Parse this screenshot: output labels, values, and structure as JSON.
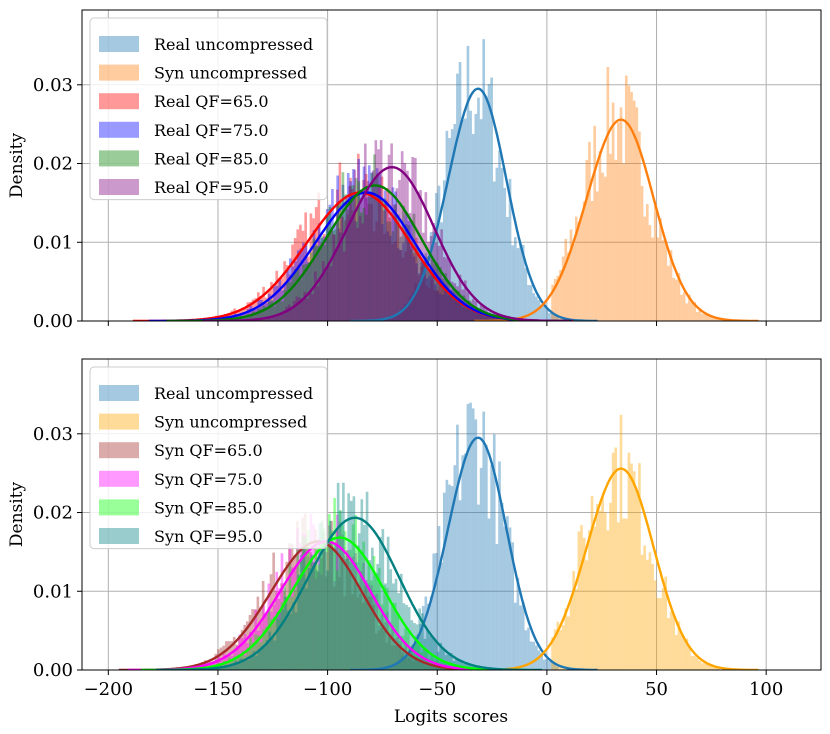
{
  "chart_data": [
    {
      "type": "histogram+kde",
      "panel": "top",
      "xlabel": "",
      "ylabel": "Density",
      "xlim": [
        -212,
        125
      ],
      "ylim": [
        0,
        0.0395
      ],
      "xticks": [
        -200,
        -150,
        -100,
        -50,
        0,
        50,
        100
      ],
      "yticks": [
        0.0,
        0.01,
        0.02,
        0.03
      ],
      "ytick_labels": [
        "0.00",
        "0.01",
        "0.02",
        "0.03"
      ],
      "grid": true,
      "legend_position": "top-left",
      "series": [
        {
          "name": "Real uncompressed",
          "color": "#1f77b4",
          "mean": -33,
          "sd": 13.5,
          "peak": 0.0293,
          "range": [
            -75,
            5
          ],
          "hist_alpha": 0.4
        },
        {
          "name": "Syn uncompressed",
          "color": "#ff7f0e",
          "mean": 32,
          "sd": 15.5,
          "peak": 0.0254,
          "range": [
            2,
            92
          ],
          "hist_alpha": 0.4
        },
        {
          "name": "Real QF=65.0",
          "color": "#ff0000",
          "mean": -88,
          "sd": 24,
          "peak": 0.0162,
          "range": [
            -185,
            -15
          ],
          "hist_alpha": 0.4
        },
        {
          "name": "Real QF=75.0",
          "color": "#0000ff",
          "mean": -85,
          "sd": 23,
          "peak": 0.0162,
          "range": [
            -180,
            -10
          ],
          "hist_alpha": 0.4
        },
        {
          "name": "Real QF=85.0",
          "color": "#008000",
          "mean": -81,
          "sd": 22,
          "peak": 0.0171,
          "range": [
            -180,
            -5
          ],
          "hist_alpha": 0.4
        },
        {
          "name": "Real QF=95.0",
          "color": "#800080",
          "mean": -73,
          "sd": 20,
          "peak": 0.0194,
          "range": [
            -165,
            0
          ],
          "hist_alpha": 0.4
        }
      ]
    },
    {
      "type": "histogram+kde",
      "panel": "bottom",
      "xlabel": "Logits scores",
      "ylabel": "Density",
      "xlim": [
        -212,
        125
      ],
      "ylim": [
        0,
        0.0395
      ],
      "xticks": [
        -200,
        -150,
        -100,
        -50,
        0,
        50,
        100
      ],
      "xtick_labels": [
        "−200",
        "−150",
        "−100",
        "−50",
        "0",
        "50",
        "100"
      ],
      "yticks": [
        0.0,
        0.01,
        0.02,
        0.03
      ],
      "ytick_labels": [
        "0.00",
        "0.01",
        "0.02",
        "0.03"
      ],
      "grid": true,
      "legend_position": "top-left",
      "series": [
        {
          "name": "Real uncompressed",
          "color": "#1f77b4",
          "mean": -33,
          "sd": 13.5,
          "peak": 0.0293,
          "range": [
            -75,
            5
          ],
          "hist_alpha": 0.4
        },
        {
          "name": "Syn uncompressed",
          "color": "#ffa500",
          "mean": 32,
          "sd": 15.5,
          "peak": 0.0254,
          "range": [
            2,
            92
          ],
          "hist_alpha": 0.4
        },
        {
          "name": "Syn QF=65.0",
          "color": "#a52a2a",
          "mean": -107,
          "sd": 21,
          "peak": 0.0162,
          "range": [
            -190,
            -30
          ],
          "hist_alpha": 0.4
        },
        {
          "name": "Syn QF=75.0",
          "color": "#ff00ff",
          "mean": -103,
          "sd": 21,
          "peak": 0.0162,
          "range": [
            -185,
            -25
          ],
          "hist_alpha": 0.4
        },
        {
          "name": "Syn QF=85.0",
          "color": "#00ff00",
          "mean": -97,
          "sd": 21,
          "peak": 0.0167,
          "range": [
            -185,
            -20
          ],
          "hist_alpha": 0.4
        },
        {
          "name": "Syn QF=95.0",
          "color": "#008080",
          "mean": -90,
          "sd": 21,
          "peak": 0.0192,
          "range": [
            -175,
            -10
          ],
          "hist_alpha": 0.4
        }
      ]
    }
  ]
}
